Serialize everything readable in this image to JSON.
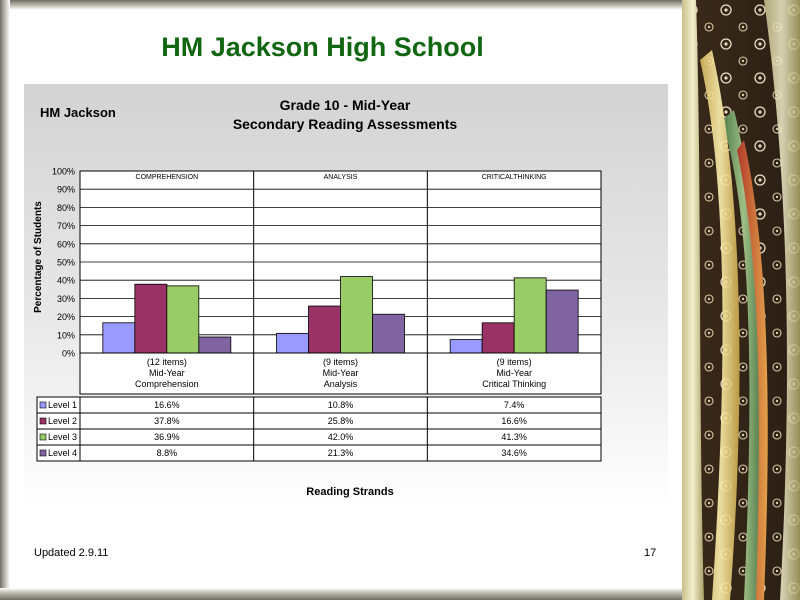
{
  "slide": {
    "title": "HM Jackson High School",
    "footer_updated": "Updated  2.9.11",
    "page_number": "17"
  },
  "colors": {
    "title_green": "#116611",
    "level1": "#9999ff",
    "level2": "#993366",
    "level3": "#99cc66",
    "level4": "#8064a2"
  },
  "chart_data": {
    "type": "bar",
    "school_label": "HM Jackson",
    "title_lines": [
      "Grade 10 - Mid-Year",
      "Secondary Reading Assessments"
    ],
    "ylabel": "Percentage of Students",
    "xlabel": "Reading Strands",
    "ylim": [
      0,
      100
    ],
    "yticks": [
      "0%",
      "10%",
      "20%",
      "30%",
      "40%",
      "50%",
      "60%",
      "70%",
      "80%",
      "90%",
      "100%"
    ],
    "grid": true,
    "legend": "data-table-left",
    "groups": [
      {
        "header": "COMPREHENSION",
        "label": [
          "(12 items)",
          "Mid-Year",
          "Comprehension"
        ]
      },
      {
        "header": "ANALYSIS",
        "label": [
          "(9 items)",
          "Mid-Year",
          "Analysis"
        ]
      },
      {
        "header": "CRITICALTHINKING",
        "label": [
          "(9 items)",
          "Mid-Year",
          "Critical Thinking"
        ]
      }
    ],
    "series": [
      {
        "name": "Level 1",
        "values": [
          16.6,
          10.8,
          7.4
        ],
        "labels": [
          "16.6%",
          "10.8%",
          "7.4%"
        ]
      },
      {
        "name": "Level 2",
        "values": [
          37.8,
          25.8,
          16.6
        ],
        "labels": [
          "37.8%",
          "25.8%",
          "16.6%"
        ]
      },
      {
        "name": "Level 3",
        "values": [
          36.9,
          42.0,
          41.3
        ],
        "labels": [
          "36.9%",
          "42.0%",
          "41.3%"
        ]
      },
      {
        "name": "Level 4",
        "values": [
          8.8,
          21.3,
          34.6
        ],
        "labels": [
          "8.8%",
          "21.3%",
          "34.6%"
        ]
      }
    ]
  }
}
